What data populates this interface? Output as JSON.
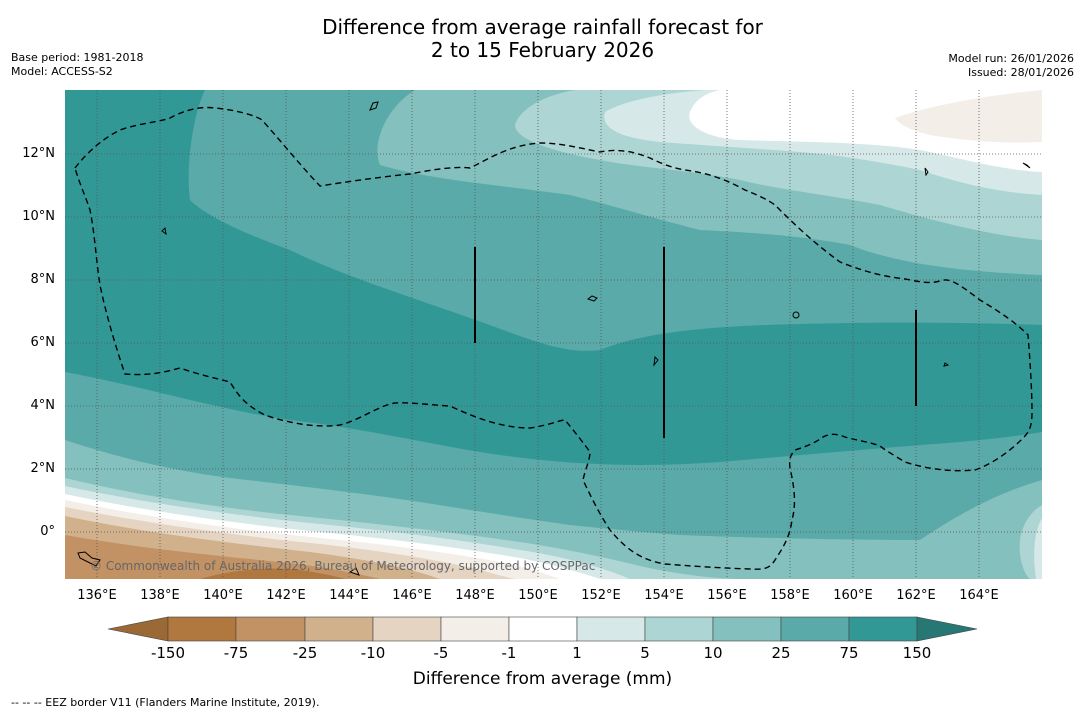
{
  "title": {
    "line1": "Difference from average rainfall forecast for",
    "line2": "2 to 15 February 2026"
  },
  "meta": {
    "base_period": "Base period: 1981-2018",
    "model": "Model: ACCESS-S2",
    "model_run": "Model run: 26/01/2026",
    "issued": "Issued: 28/01/2026"
  },
  "credit": "© Commonwealth of Australia 2026, Bureau of Meteorology, supported by COSPPac",
  "axes": {
    "lat_labels": [
      "12°N",
      "10°N",
      "8°N",
      "6°N",
      "4°N",
      "2°N",
      "0°"
    ],
    "lon_labels": [
      "136°E",
      "138°E",
      "140°E",
      "142°E",
      "144°E",
      "146°E",
      "148°E",
      "150°E",
      "152°E",
      "154°E",
      "156°E",
      "158°E",
      "160°E",
      "162°E",
      "164°E"
    ]
  },
  "colorbar": {
    "ticks": [
      "-150",
      "-75",
      "-25",
      "-10",
      "-5",
      "-1",
      "1",
      "5",
      "10",
      "25",
      "75",
      "150"
    ],
    "title": "Difference from average (mm)",
    "colors": {
      "below_-150": "#9a6935",
      "-150_-75": "#b0783f",
      "-75_-25": "#c39264",
      "-25_-10": "#d1b08c",
      "-10_-5": "#e5d4c1",
      "-5_-1": "#f3eee8",
      "-1_1": "#ffffff",
      "1_5": "#d6e9e8",
      "5_10": "#acd5d3",
      "10_25": "#84c0bd",
      "25_75": "#59aaa8",
      "75_150": "#329896",
      "above_150": "#277775"
    }
  },
  "legend_note": "--  --  -- EEZ border V11 (Flanders Marine Institute, 2019)."
}
